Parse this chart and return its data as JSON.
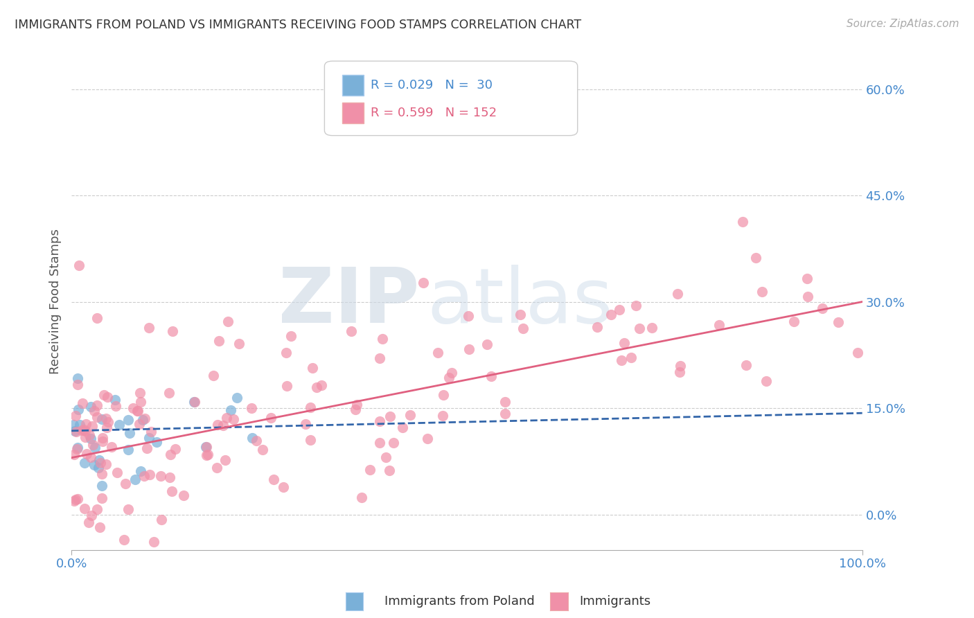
{
  "title": "IMMIGRANTS FROM POLAND VS IMMIGRANTS RECEIVING FOOD STAMPS CORRELATION CHART",
  "source": "Source: ZipAtlas.com",
  "ylabel": "Receiving Food Stamps",
  "xlim": [
    0,
    1
  ],
  "ylim": [
    -0.05,
    0.65
  ],
  "yticks": [
    0.0,
    0.15,
    0.3,
    0.45,
    0.6
  ],
  "ytick_labels": [
    "0.0%",
    "15.0%",
    "30.0%",
    "45.0%",
    "60.0%"
  ],
  "blue_intercept": 0.118,
  "blue_slope": 0.025,
  "pink_intercept": 0.08,
  "pink_slope": 0.22,
  "background_color": "#ffffff",
  "grid_color": "#cccccc",
  "title_color": "#333333",
  "axis_label_color": "#555555",
  "tick_color": "#4488cc",
  "blue_color": "#7ab0d8",
  "blue_line_color": "#3366aa",
  "pink_color": "#f090a8",
  "pink_line_color": "#e06080"
}
